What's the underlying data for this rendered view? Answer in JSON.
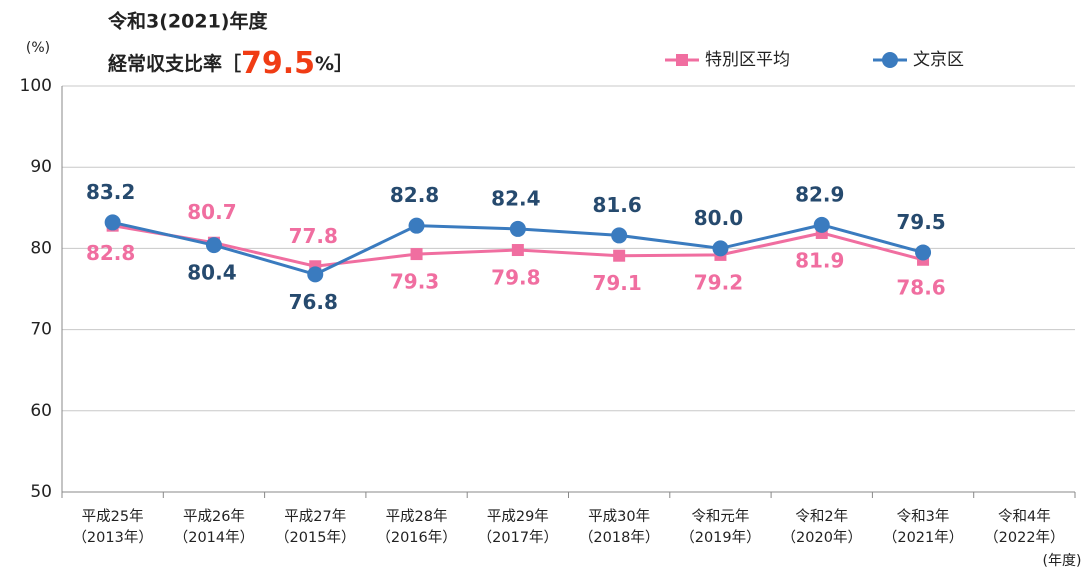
{
  "chart_data": {
    "type": "line",
    "title": "令和3(2021)年度",
    "subtitle": "経常収支比率［",
    "subtitle_highlight": "79.5",
    "subtitle_suffix": "%］",
    "y_label": "(%)",
    "x_label": "(年度)",
    "categories": [
      [
        "平成25年",
        "（2013年）"
      ],
      [
        "平成26年",
        "（2014年）"
      ],
      [
        "平成27年",
        "（2015年）"
      ],
      [
        "平成28年",
        "（2016年）"
      ],
      [
        "平成29年",
        "（2017年）"
      ],
      [
        "平成30年",
        "（2018年）"
      ],
      [
        "令和元年",
        "（2019年）"
      ],
      [
        "令和2年",
        "（2020年）"
      ],
      [
        "令和3年",
        "（2021年）"
      ],
      [
        "令和4年",
        "（2022年）"
      ]
    ],
    "series": [
      {
        "name": "特別区平均",
        "color": "#f06ea0",
        "label_color": "#f06ea0",
        "marker": "square",
        "values": [
          82.8,
          80.7,
          77.8,
          79.3,
          79.8,
          79.1,
          79.2,
          81.9,
          78.6,
          null
        ],
        "value_labels": [
          "82.8",
          "80.7",
          "77.8",
          "79.3",
          "79.8",
          "79.1",
          "79.2",
          "81.9",
          "78.6",
          null
        ]
      },
      {
        "name": "文京区",
        "color": "#3a7bbf",
        "label_color": "#264a6e",
        "marker": "circle",
        "values": [
          83.2,
          80.4,
          76.8,
          82.8,
          82.4,
          81.6,
          80.0,
          82.9,
          79.5,
          null
        ],
        "value_labels": [
          "83.2",
          "80.4",
          "76.8",
          "82.8",
          "82.4",
          "81.6",
          "80.0",
          "82.9",
          "79.5",
          null
        ]
      }
    ],
    "ylim": [
      50,
      100
    ],
    "yticks": [
      50,
      60,
      70,
      80,
      90,
      100
    ],
    "grid": true
  }
}
